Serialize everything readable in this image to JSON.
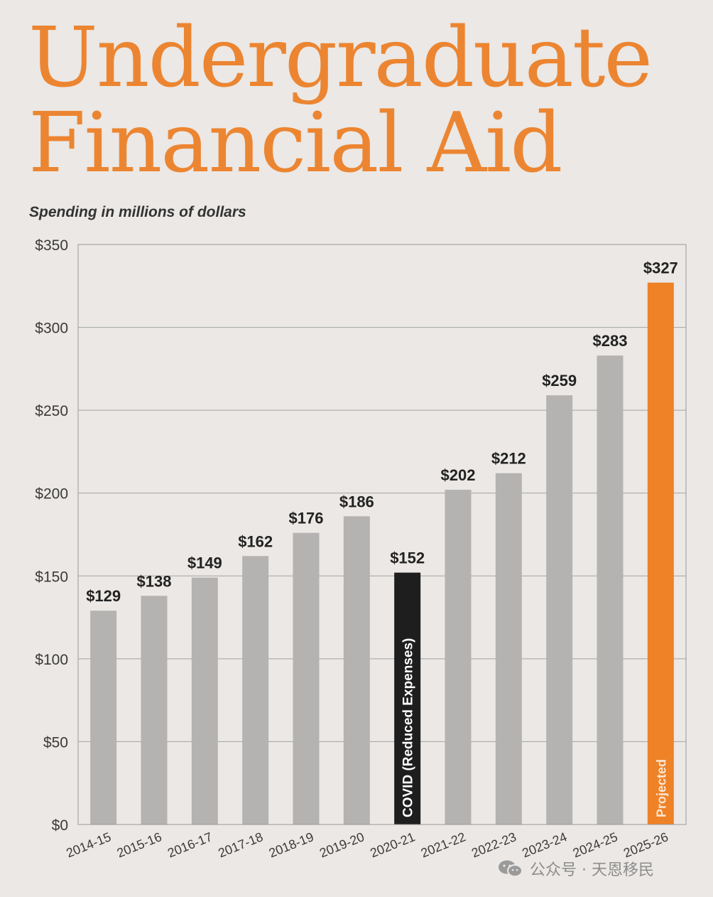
{
  "title": {
    "line1": "Undergraduate",
    "line2": "Financial Aid"
  },
  "subtitle": "Spending in millions of dollars",
  "colors": {
    "title": "#ec8531",
    "bar_default": "#b5b3b2",
    "bar_covid": "#1e1e1e",
    "bar_projected": "#ef8126",
    "background": "#ebe8e5",
    "gridline": "#a3a3a3"
  },
  "chart_data": {
    "type": "bar",
    "title": "",
    "xlabel": "",
    "ylabel": "",
    "ylim": [
      0,
      350
    ],
    "yticks": [
      0,
      50,
      100,
      150,
      200,
      250,
      300,
      350
    ],
    "ytick_labels": [
      "$0",
      "$50",
      "$100",
      "$150",
      "$200",
      "$250",
      "$300",
      "$350"
    ],
    "grid": true,
    "categories": [
      "2014-15",
      "2015-16",
      "2016-17",
      "2017-18",
      "2018-19",
      "2019-20",
      "2020-21",
      "2021-22",
      "2022-23",
      "2023-24",
      "2024-25",
      "2025-26"
    ],
    "values": [
      129,
      138,
      149,
      162,
      176,
      186,
      152,
      202,
      212,
      259,
      283,
      327
    ],
    "value_labels": [
      "$129",
      "$138",
      "$149",
      "$162",
      "$176",
      "$186",
      "$152",
      "$202",
      "$212",
      "$259",
      "$283",
      "$327"
    ],
    "bar_styles": [
      "default",
      "default",
      "default",
      "default",
      "default",
      "default",
      "covid",
      "default",
      "default",
      "default",
      "default",
      "projected"
    ],
    "annotations": [
      {
        "category": "2020-21",
        "text": "COVID (Reduced Expenses)"
      },
      {
        "category": "2025-26",
        "text": "Projected"
      }
    ]
  },
  "watermark": {
    "text": "公众号 · 天恩移民",
    "icon": "wechat-icon"
  }
}
